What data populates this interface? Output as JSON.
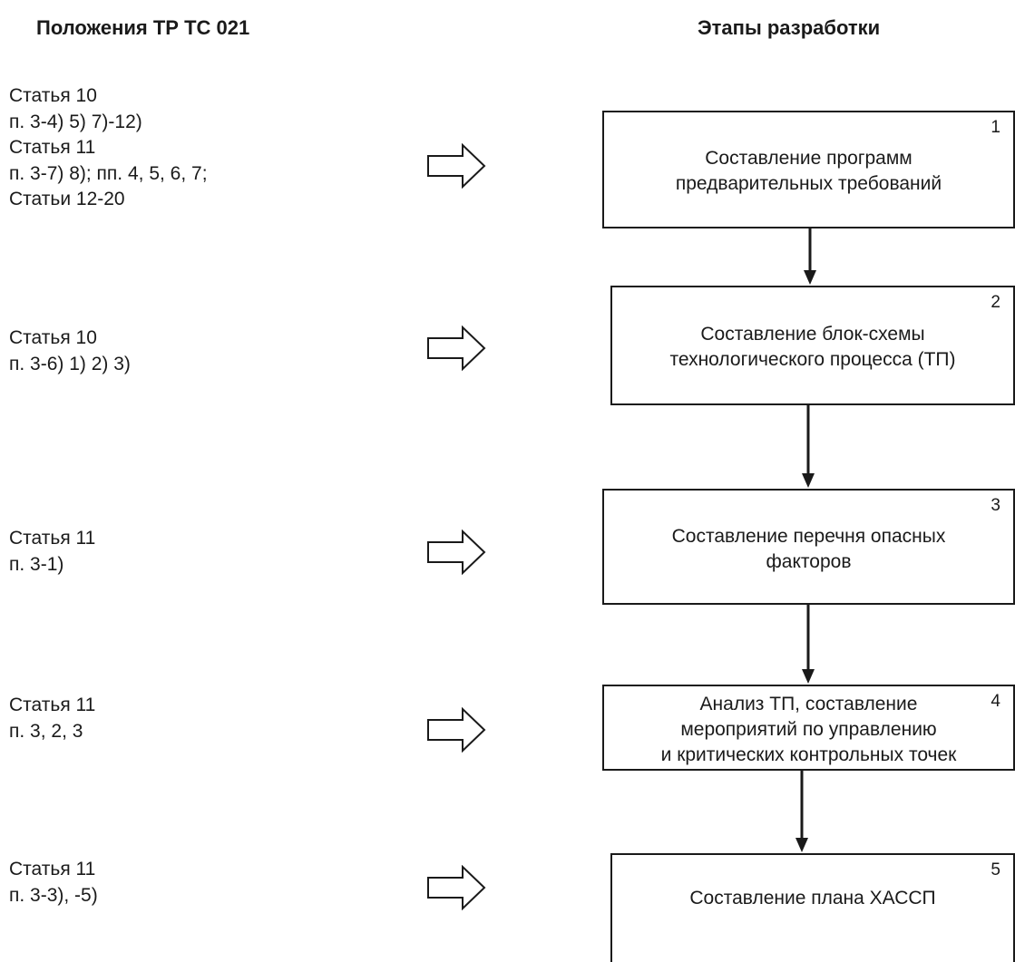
{
  "headers": {
    "left": "Положения ТР ТС 021",
    "right": "Этапы разработки"
  },
  "provisions": [
    {
      "lines": [
        "Статья 10",
        "п. 3-4) 5) 7)-12)",
        "Статья 11",
        "п. 3-7) 8); пп. 4, 5, 6, 7;",
        "Статьи 12-20"
      ]
    },
    {
      "lines": [
        "Статья 10",
        "п. 3-6) 1) 2) 3)"
      ]
    },
    {
      "lines": [
        "Статья 11",
        "п. 3-1)"
      ]
    },
    {
      "lines": [
        "Статья 11",
        "п. 3, 2, 3"
      ]
    },
    {
      "lines": [
        "Статья 11",
        "п. 3-3), -5)"
      ]
    }
  ],
  "stages": [
    {
      "number": "1",
      "lines": [
        "Составление программ",
        "предварительных требований"
      ]
    },
    {
      "number": "2",
      "lines": [
        "Составление блок-схемы",
        "технологического процесса (ТП)"
      ]
    },
    {
      "number": "3",
      "lines": [
        "Составление перечня опасных",
        "факторов"
      ]
    },
    {
      "number": "4",
      "lines": [
        "Анализ ТП, составление",
        "мероприятий по управлению",
        "и критических контрольных точек"
      ]
    },
    {
      "number": "5",
      "lines": [
        "Составление плана ХАССП"
      ]
    }
  ],
  "colors": {
    "line": "#1a1a1a",
    "background": "#ffffff"
  },
  "icons": {
    "provision_arrow": "right-hollow-arrow-icon",
    "flow_arrow": "down-arrow-icon"
  }
}
